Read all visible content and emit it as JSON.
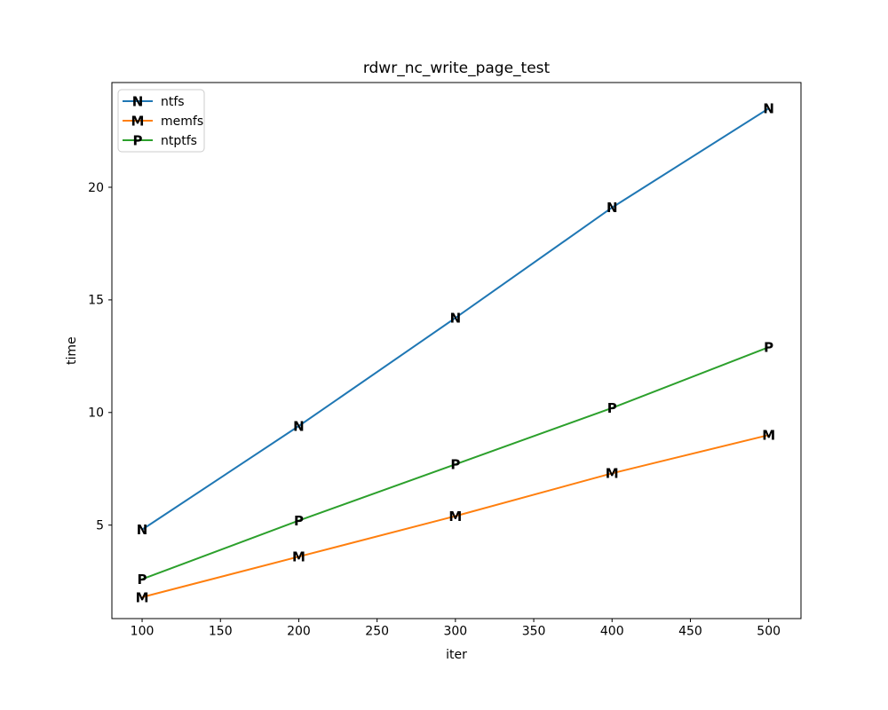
{
  "figure": {
    "title": "rdwr_nc_write_page_test",
    "xlabel": "iter",
    "ylabel": "time"
  },
  "chart_data": {
    "type": "line",
    "title": "rdwr_nc_write_page_test",
    "xlabel": "iter",
    "ylabel": "time",
    "x": [
      100,
      200,
      300,
      400,
      500
    ],
    "series": [
      {
        "name": "ntfs",
        "marker": "N",
        "color": "#1f77b4",
        "values": [
          4.8,
          9.4,
          14.2,
          19.1,
          23.5
        ]
      },
      {
        "name": "memfs",
        "marker": "M",
        "color": "#ff7f0e",
        "values": [
          1.8,
          3.6,
          5.4,
          7.3,
          9.0
        ]
      },
      {
        "name": "ntptfs",
        "marker": "P",
        "color": "#2ca02c",
        "values": [
          2.6,
          5.2,
          7.7,
          10.2,
          12.9
        ]
      }
    ],
    "xticks": [
      100,
      150,
      200,
      250,
      300,
      350,
      400,
      450,
      500
    ],
    "yticks": [
      5,
      10,
      15,
      20
    ],
    "xlim": [
      80.7,
      520.6
    ],
    "ylim": [
      0.85,
      24.65
    ],
    "grid": false,
    "legend": {
      "position": "upper-left",
      "entries": [
        "ntfs",
        "memfs",
        "ntptfs"
      ]
    },
    "axis_color": "#000000",
    "legend_border_color": "#cccccc",
    "background": "#ffffff"
  }
}
